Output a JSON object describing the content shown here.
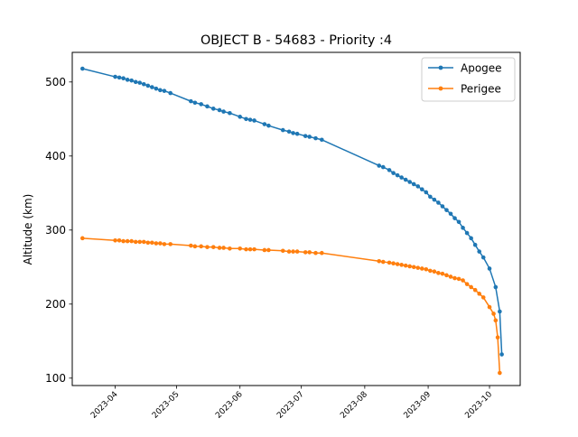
{
  "chart_data": {
    "type": "line",
    "title": "OBJECT B - 54683 - Priority :4",
    "xlabel": "",
    "ylabel": "Altitude (km)",
    "x_type": "date",
    "xlim": [
      "2023-03-11",
      "2023-10-16"
    ],
    "ylim": [
      90,
      540
    ],
    "x_ticks": [
      "2023-04",
      "2023-05",
      "2023-06",
      "2023-07",
      "2023-08",
      "2023-09",
      "2023-10"
    ],
    "y_ticks": [
      100,
      200,
      300,
      400,
      500
    ],
    "grid": false,
    "legend_position": "top-right",
    "series": [
      {
        "name": "Apogee",
        "color": "#1f77b4",
        "marker": "point",
        "points": [
          [
            "2023-03-16",
            518
          ],
          [
            "2023-04-01",
            507
          ],
          [
            "2023-04-03",
            506
          ],
          [
            "2023-04-05",
            505
          ],
          [
            "2023-04-07",
            503
          ],
          [
            "2023-04-09",
            502
          ],
          [
            "2023-04-11",
            500
          ],
          [
            "2023-04-13",
            499
          ],
          [
            "2023-04-15",
            497
          ],
          [
            "2023-04-17",
            495
          ],
          [
            "2023-04-19",
            493
          ],
          [
            "2023-04-21",
            491
          ],
          [
            "2023-04-23",
            489
          ],
          [
            "2023-04-25",
            488
          ],
          [
            "2023-04-28",
            485
          ],
          [
            "2023-05-08",
            474
          ],
          [
            "2023-05-10",
            472
          ],
          [
            "2023-05-13",
            470
          ],
          [
            "2023-05-16",
            467
          ],
          [
            "2023-05-19",
            464
          ],
          [
            "2023-05-22",
            462
          ],
          [
            "2023-05-24",
            460
          ],
          [
            "2023-05-27",
            458
          ],
          [
            "2023-06-01",
            453
          ],
          [
            "2023-06-04",
            450
          ],
          [
            "2023-06-06",
            449
          ],
          [
            "2023-06-08",
            448
          ],
          [
            "2023-06-13",
            443
          ],
          [
            "2023-06-15",
            441
          ],
          [
            "2023-06-22",
            435
          ],
          [
            "2023-06-25",
            433
          ],
          [
            "2023-06-27",
            431
          ],
          [
            "2023-06-29",
            430
          ],
          [
            "2023-07-03",
            427
          ],
          [
            "2023-07-05",
            426
          ],
          [
            "2023-07-08",
            424
          ],
          [
            "2023-07-11",
            422
          ],
          [
            "2023-08-08",
            387
          ],
          [
            "2023-08-10",
            385
          ],
          [
            "2023-08-13",
            381
          ],
          [
            "2023-08-15",
            377
          ],
          [
            "2023-08-17",
            374
          ],
          [
            "2023-08-19",
            371
          ],
          [
            "2023-08-21",
            368
          ],
          [
            "2023-08-23",
            365
          ],
          [
            "2023-08-25",
            362
          ],
          [
            "2023-08-27",
            359
          ],
          [
            "2023-08-29",
            355
          ],
          [
            "2023-08-31",
            351
          ],
          [
            "2023-09-02",
            345
          ],
          [
            "2023-09-04",
            341
          ],
          [
            "2023-09-06",
            337
          ],
          [
            "2023-09-08",
            332
          ],
          [
            "2023-09-10",
            327
          ],
          [
            "2023-09-12",
            322
          ],
          [
            "2023-09-14",
            316
          ],
          [
            "2023-09-16",
            311
          ],
          [
            "2023-09-18",
            303
          ],
          [
            "2023-09-20",
            296
          ],
          [
            "2023-09-22",
            289
          ],
          [
            "2023-09-24",
            280
          ],
          [
            "2023-09-26",
            271
          ],
          [
            "2023-09-28",
            263
          ],
          [
            "2023-10-01",
            248
          ],
          [
            "2023-10-04",
            223
          ],
          [
            "2023-10-06",
            190
          ],
          [
            "2023-10-07",
            132
          ]
        ]
      },
      {
        "name": "Perigee",
        "color": "#ff7f0e",
        "marker": "point",
        "points": [
          [
            "2023-03-16",
            289
          ],
          [
            "2023-04-01",
            286
          ],
          [
            "2023-04-03",
            286
          ],
          [
            "2023-04-05",
            285
          ],
          [
            "2023-04-07",
            285
          ],
          [
            "2023-04-09",
            285
          ],
          [
            "2023-04-11",
            284
          ],
          [
            "2023-04-13",
            284
          ],
          [
            "2023-04-15",
            284
          ],
          [
            "2023-04-17",
            283
          ],
          [
            "2023-04-19",
            283
          ],
          [
            "2023-04-21",
            282
          ],
          [
            "2023-04-23",
            282
          ],
          [
            "2023-04-25",
            281
          ],
          [
            "2023-04-28",
            281
          ],
          [
            "2023-05-08",
            279
          ],
          [
            "2023-05-10",
            278
          ],
          [
            "2023-05-13",
            278
          ],
          [
            "2023-05-16",
            277
          ],
          [
            "2023-05-19",
            277
          ],
          [
            "2023-05-22",
            276
          ],
          [
            "2023-05-24",
            276
          ],
          [
            "2023-05-27",
            275
          ],
          [
            "2023-06-01",
            275
          ],
          [
            "2023-06-04",
            274
          ],
          [
            "2023-06-06",
            274
          ],
          [
            "2023-06-08",
            274
          ],
          [
            "2023-06-13",
            273
          ],
          [
            "2023-06-15",
            273
          ],
          [
            "2023-06-22",
            272
          ],
          [
            "2023-06-25",
            271
          ],
          [
            "2023-06-27",
            271
          ],
          [
            "2023-06-29",
            271
          ],
          [
            "2023-07-03",
            270
          ],
          [
            "2023-07-05",
            270
          ],
          [
            "2023-07-08",
            269
          ],
          [
            "2023-07-11",
            269
          ],
          [
            "2023-08-08",
            258
          ],
          [
            "2023-08-10",
            257
          ],
          [
            "2023-08-13",
            256
          ],
          [
            "2023-08-15",
            255
          ],
          [
            "2023-08-17",
            254
          ],
          [
            "2023-08-19",
            253
          ],
          [
            "2023-08-21",
            252
          ],
          [
            "2023-08-23",
            251
          ],
          [
            "2023-08-25",
            250
          ],
          [
            "2023-08-27",
            249
          ],
          [
            "2023-08-29",
            248
          ],
          [
            "2023-08-31",
            247
          ],
          [
            "2023-09-02",
            245
          ],
          [
            "2023-09-04",
            244
          ],
          [
            "2023-09-06",
            242
          ],
          [
            "2023-09-08",
            241
          ],
          [
            "2023-09-10",
            239
          ],
          [
            "2023-09-12",
            237
          ],
          [
            "2023-09-14",
            235
          ],
          [
            "2023-09-16",
            234
          ],
          [
            "2023-09-18",
            232
          ],
          [
            "2023-09-20",
            227
          ],
          [
            "2023-09-22",
            223
          ],
          [
            "2023-09-24",
            219
          ],
          [
            "2023-09-26",
            214
          ],
          [
            "2023-09-28",
            209
          ],
          [
            "2023-10-01",
            196
          ],
          [
            "2023-10-03",
            187
          ],
          [
            "2023-10-04",
            178
          ],
          [
            "2023-10-05",
            155
          ],
          [
            "2023-10-06",
            107
          ]
        ]
      }
    ]
  }
}
